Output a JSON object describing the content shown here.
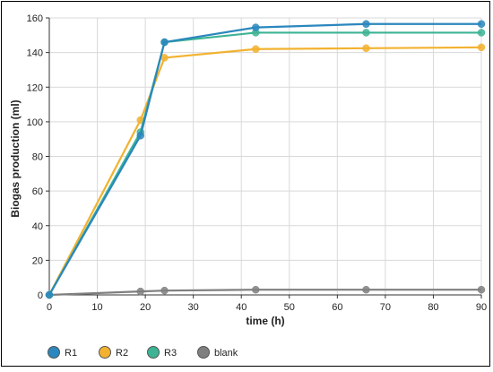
{
  "chart_data": {
    "type": "line",
    "xlabel": "time (h)",
    "ylabel": "Biogas production (ml)",
    "xlim": [
      0,
      90
    ],
    "ylim": [
      0,
      160
    ],
    "x_ticks": [
      0,
      10,
      20,
      30,
      40,
      50,
      60,
      70,
      80,
      90
    ],
    "y_ticks": [
      0,
      20,
      40,
      60,
      80,
      100,
      120,
      140,
      160
    ],
    "grid": true,
    "legend_position": "bottom-left",
    "series": [
      {
        "name": "blank",
        "color": "#7f7f7f",
        "x": [
          0,
          19,
          24,
          43,
          66,
          90
        ],
        "y": [
          0,
          2,
          2.5,
          3,
          3,
          3
        ]
      },
      {
        "name": "R2",
        "color": "#f2b230",
        "x": [
          0,
          19,
          24,
          43,
          66,
          90
        ],
        "y": [
          0,
          101,
          137,
          142,
          142.5,
          143
        ]
      },
      {
        "name": "R3",
        "color": "#3db394",
        "x": [
          0,
          19,
          24,
          43,
          66,
          90
        ],
        "y": [
          0,
          94,
          146,
          151.5,
          151.5,
          151.5
        ]
      },
      {
        "name": "R1",
        "color": "#2b87bd",
        "x": [
          0,
          19,
          24,
          43,
          66,
          90
        ],
        "y": [
          0,
          92,
          146,
          154.5,
          156.5,
          156.5
        ]
      }
    ],
    "legend_order": [
      "R1",
      "R2",
      "R3",
      "blank"
    ]
  }
}
